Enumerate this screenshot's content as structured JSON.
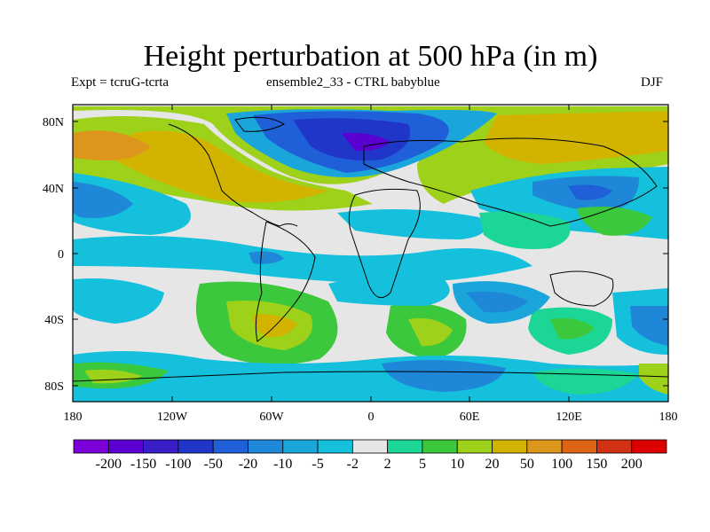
{
  "title": "Height perturbation at 500 hPa (in m)",
  "subtitle_left": "Expt = tcruG-tcrta",
  "subtitle_center": "ensemble2_33 - CTRL babyblue",
  "subtitle_right": "DJF",
  "map": {
    "projection": "cylindrical-equidistant",
    "lon_range": [
      -180,
      180
    ],
    "lat_range": [
      -90,
      90
    ],
    "y_tick_labels": [
      "80N",
      "40N",
      "0",
      "40S",
      "80S"
    ],
    "x_tick_labels": [
      "180",
      "120W",
      "60W",
      "0",
      "60E",
      "120E",
      "180"
    ]
  },
  "colorbar": {
    "labels": [
      "-200",
      "-150",
      "-100",
      "-50",
      "-20",
      "-10",
      "-5",
      "-2",
      "2",
      "5",
      "10",
      "20",
      "50",
      "100",
      "150",
      "200"
    ],
    "colors": [
      "#7d00db",
      "#5a00d0",
      "#3a1fc8",
      "#2036c9",
      "#1f5fd8",
      "#1f87d8",
      "#1aa6da",
      "#15c0dc",
      "#e6e6e6",
      "#1cd696",
      "#3cc83c",
      "#9ed21a",
      "#d2b400",
      "#dc961c",
      "#dc6414",
      "#d23214",
      "#dc0000"
    ]
  }
}
